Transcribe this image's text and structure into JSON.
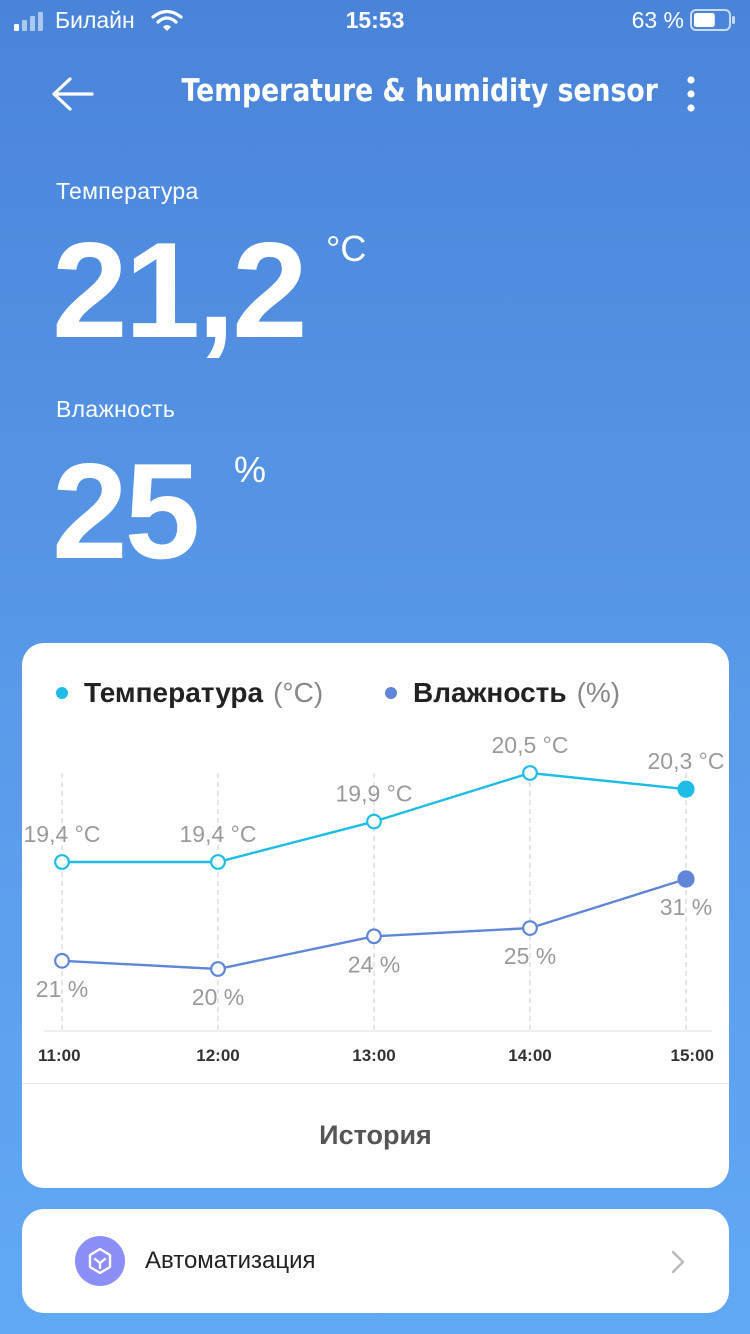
{
  "status_bar": {
    "carrier": "Билайн",
    "time": "15:53",
    "battery_percent": "63 %",
    "battery_level": 0.63
  },
  "header": {
    "title": "Temperature & humidity sensor"
  },
  "readings": {
    "temperature": {
      "label": "Температура",
      "value": "21,2",
      "unit": "°C"
    },
    "humidity": {
      "label": "Влажность",
      "value": "25",
      "unit": "%"
    }
  },
  "chart_legend": {
    "temperature": {
      "name": "Температура",
      "unit": "(°C)",
      "color": "#1fbde6"
    },
    "humidity": {
      "name": "Влажность",
      "unit": "(%)",
      "color": "#5f86d9"
    }
  },
  "chart_data": {
    "type": "line",
    "x": [
      "11:00",
      "12:00",
      "13:00",
      "14:00",
      "15:00"
    ],
    "series": [
      {
        "name": "Температура",
        "values": [
          19.4,
          19.4,
          19.9,
          20.5,
          20.3
        ],
        "labels": [
          "19,4 °C",
          "19,4 °C",
          "19,9 °C",
          "20,5 °C",
          "20,3 °C"
        ],
        "color": "#1fbde6"
      },
      {
        "name": "Влажность",
        "values": [
          21,
          20,
          24,
          25,
          31
        ],
        "labels": [
          "21 %",
          "20 %",
          "24 %",
          "25 %",
          "31 %"
        ],
        "color": "#5f86d9"
      }
    ]
  },
  "history_button": "История",
  "automation": {
    "label": "Автоматизация",
    "icon_color": "#8b8ef5"
  }
}
